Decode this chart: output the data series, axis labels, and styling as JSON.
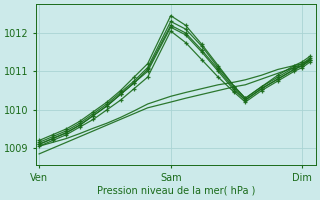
{
  "background_color": "#cceaea",
  "grid_color": "#aad4d4",
  "line_color": "#1a6b1a",
  "title": "Pression niveau de la mer( hPa )",
  "xtick_labels": [
    "Ven",
    "Sam",
    "Dim"
  ],
  "xtick_positions": [
    0.0,
    0.485,
    0.97
  ],
  "yticks": [
    1009,
    1010,
    1011,
    1012
  ],
  "ylim": [
    1008.55,
    1012.75
  ],
  "xlim": [
    -0.01,
    1.02
  ],
  "lines": [
    {
      "x": [
        0.0,
        0.05,
        0.1,
        0.15,
        0.2,
        0.25,
        0.3,
        0.35,
        0.4,
        0.485,
        0.54,
        0.6,
        0.66,
        0.72,
        0.76,
        0.82,
        0.88,
        0.94,
        0.97,
        1.0
      ],
      "y": [
        1009.05,
        1009.2,
        1009.35,
        1009.55,
        1009.75,
        1010.0,
        1010.25,
        1010.55,
        1010.85,
        1012.05,
        1011.75,
        1011.3,
        1010.85,
        1010.45,
        1010.2,
        1010.5,
        1010.75,
        1011.0,
        1011.1,
        1011.25
      ],
      "marker": true
    },
    {
      "x": [
        0.0,
        0.05,
        0.1,
        0.15,
        0.2,
        0.25,
        0.3,
        0.35,
        0.4,
        0.485,
        0.54,
        0.6,
        0.66,
        0.72,
        0.76,
        0.82,
        0.88,
        0.94,
        0.97,
        1.0
      ],
      "y": [
        1009.1,
        1009.25,
        1009.4,
        1009.6,
        1009.85,
        1010.1,
        1010.4,
        1010.7,
        1011.05,
        1012.2,
        1012.0,
        1011.55,
        1011.05,
        1010.55,
        1010.25,
        1010.55,
        1010.8,
        1011.05,
        1011.15,
        1011.3
      ],
      "marker": true
    },
    {
      "x": [
        0.0,
        0.05,
        0.1,
        0.15,
        0.2,
        0.25,
        0.3,
        0.35,
        0.4,
        0.485,
        0.54,
        0.6,
        0.66,
        0.72,
        0.76,
        0.82,
        0.88,
        0.94,
        0.97,
        1.0
      ],
      "y": [
        1009.15,
        1009.3,
        1009.45,
        1009.65,
        1009.9,
        1010.15,
        1010.45,
        1010.75,
        1011.1,
        1012.3,
        1012.1,
        1011.65,
        1011.1,
        1010.6,
        1010.3,
        1010.6,
        1010.85,
        1011.1,
        1011.2,
        1011.35
      ],
      "marker": true
    },
    {
      "x": [
        0.0,
        0.05,
        0.1,
        0.15,
        0.2,
        0.25,
        0.3,
        0.35,
        0.4,
        0.485,
        0.54,
        0.6,
        0.66,
        0.72,
        0.76,
        0.82,
        0.88,
        0.94,
        0.97,
        1.0
      ],
      "y": [
        1009.2,
        1009.35,
        1009.5,
        1009.7,
        1009.95,
        1010.2,
        1010.5,
        1010.85,
        1011.2,
        1012.45,
        1012.2,
        1011.7,
        1011.15,
        1010.6,
        1010.3,
        1010.6,
        1010.9,
        1011.15,
        1011.25,
        1011.4
      ],
      "marker": true
    },
    {
      "x": [
        0.0,
        0.05,
        0.1,
        0.15,
        0.2,
        0.25,
        0.3,
        0.35,
        0.4,
        0.485,
        0.54,
        0.6,
        0.66,
        0.72,
        0.76,
        0.82,
        0.88,
        0.94,
        0.97,
        1.0
      ],
      "y": [
        1009.1,
        1009.25,
        1009.4,
        1009.6,
        1009.85,
        1010.1,
        1010.4,
        1010.7,
        1011.0,
        1012.15,
        1011.95,
        1011.5,
        1011.0,
        1010.5,
        1010.25,
        1010.55,
        1010.8,
        1011.05,
        1011.15,
        1011.3
      ],
      "marker": true
    },
    {
      "x": [
        0.0,
        0.05,
        0.1,
        0.15,
        0.2,
        0.25,
        0.3,
        0.35,
        0.4,
        0.485,
        0.54,
        0.6,
        0.66,
        0.72,
        0.76,
        0.82,
        0.88,
        0.94,
        0.97,
        1.0
      ],
      "y": [
        1008.85,
        1009.0,
        1009.15,
        1009.3,
        1009.45,
        1009.6,
        1009.75,
        1009.9,
        1010.05,
        1010.2,
        1010.3,
        1010.4,
        1010.5,
        1010.6,
        1010.65,
        1010.8,
        1010.95,
        1011.1,
        1011.15,
        1011.3
      ],
      "marker": false
    },
    {
      "x": [
        0.0,
        0.05,
        0.1,
        0.15,
        0.2,
        0.25,
        0.3,
        0.35,
        0.4,
        0.485,
        0.54,
        0.6,
        0.66,
        0.72,
        0.76,
        0.82,
        0.88,
        0.94,
        0.97,
        1.0
      ],
      "y": [
        1009.05,
        1009.15,
        1009.25,
        1009.38,
        1009.52,
        1009.65,
        1009.8,
        1009.97,
        1010.15,
        1010.35,
        1010.45,
        1010.55,
        1010.65,
        1010.72,
        1010.78,
        1010.9,
        1011.05,
        1011.15,
        1011.2,
        1011.32
      ],
      "marker": false
    }
  ]
}
